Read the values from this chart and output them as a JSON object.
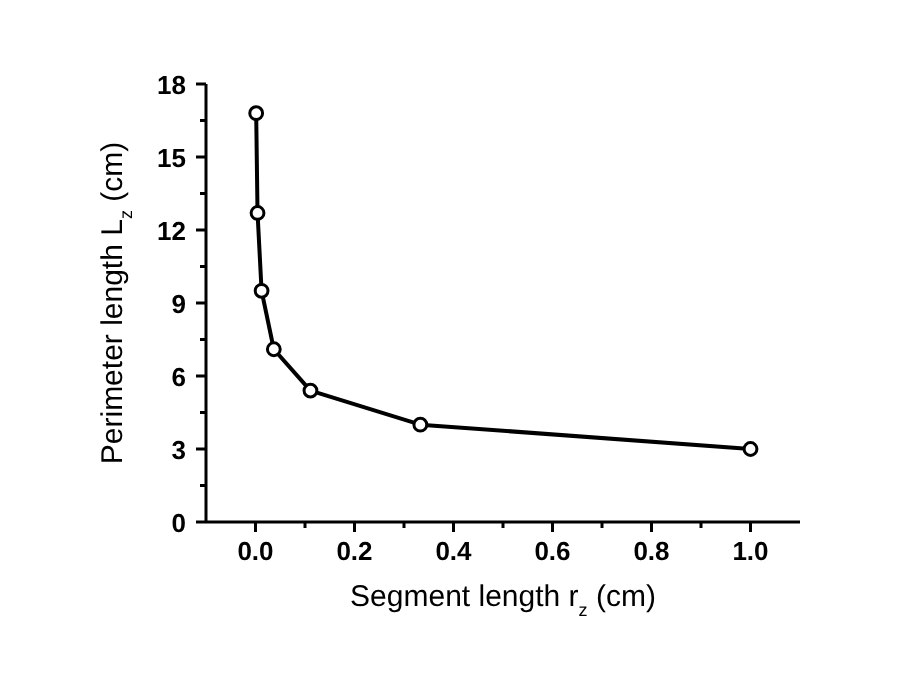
{
  "chart_data": {
    "type": "line",
    "xlabel": "Segment length r$_{z}$ (cm)",
    "ylabel": "Perimeter length L$_{z}$ (cm)",
    "x": [
      0.00137,
      0.0041,
      0.0123,
      0.037,
      0.111,
      0.333,
      1.0
    ],
    "series": [
      {
        "color": "#000000",
        "values": [
          16.8,
          12.7,
          9.5,
          7.1,
          5.4,
          4.0,
          3.0
        ]
      }
    ],
    "xlim": [
      -0.1,
      1.1
    ],
    "ylim": [
      0,
      18
    ],
    "xticks": [
      {
        "value": 0.0,
        "label": "0.0"
      },
      {
        "value": 0.1,
        "label": null
      },
      {
        "value": 0.2,
        "label": "0.2"
      },
      {
        "value": 0.3,
        "label": null
      },
      {
        "value": 0.4,
        "label": "0.4"
      },
      {
        "value": 0.5,
        "label": null
      },
      {
        "value": 0.6,
        "label": "0.6"
      },
      {
        "value": 0.7,
        "label": null
      },
      {
        "value": 0.8,
        "label": "0.8"
      },
      {
        "value": 0.9,
        "label": null
      },
      {
        "value": 1.0,
        "label": "1.0"
      }
    ],
    "yticks": [
      0,
      {
        "value": 1.5,
        "label": null
      },
      3,
      {
        "value": 4.5,
        "label": null
      },
      6,
      {
        "value": 7.5,
        "label": null
      },
      9,
      {
        "value": 10.5,
        "label": null
      },
      12,
      {
        "value": 13.5,
        "label": null
      },
      15,
      {
        "value": 16.5,
        "label": null
      },
      18
    ],
    "marker": "circle",
    "line_style": "solid"
  }
}
